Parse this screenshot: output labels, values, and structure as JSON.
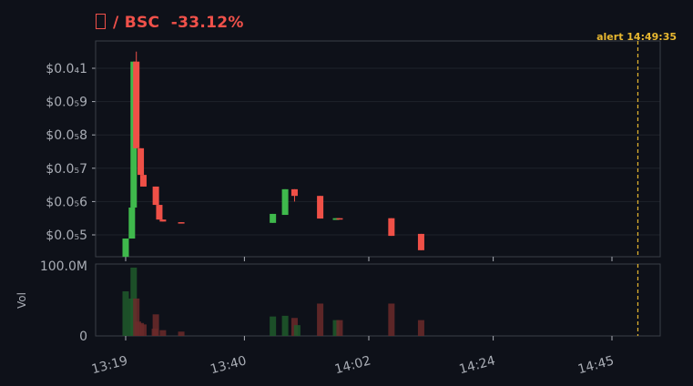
{
  "header": {
    "pair": "/ BSC",
    "change": "-33.12%",
    "token_icon": "missing-glyph-icon"
  },
  "alert": {
    "label": "alert 14:49:35",
    "time": "14:49:35",
    "color": "#e8b830"
  },
  "colors": {
    "up": "#3fb94c",
    "down": "#ef5047",
    "vol_up": "#1e5a2c",
    "vol_down": "#6b2a2a",
    "grid": "#1e222b",
    "axis": "#3a3e47"
  },
  "chart_data": [
    {
      "type": "candlestick",
      "title": "",
      "y_tick_labels": [
        "$0.0₅5",
        "$0.0₅6",
        "$0.0₅7",
        "$0.0₅8",
        "$0.0₅9",
        "$0.0₄1"
      ],
      "y_ticks": [
        5e-06,
        6e-06,
        7e-06,
        8e-06,
        9e-06,
        1e-05
      ],
      "x_tick_labels": [
        "13:19",
        "13:40",
        "14:02",
        "14:24",
        "14:45"
      ],
      "grid": true,
      "candles": [
        {
          "t": "13:19:00",
          "o": 4.34e-06,
          "h": 4.89e-06,
          "l": 4.34e-06,
          "c": 4.89e-06
        },
        {
          "t": "13:20:06",
          "o": 4.89e-06,
          "h": 5.82e-06,
          "l": 4.89e-06,
          "c": 5.82e-06
        },
        {
          "t": "13:20:25",
          "o": 5.82e-06,
          "h": 1.02e-05,
          "l": 5.82e-06,
          "c": 1.02e-05
        },
        {
          "t": "13:20:53",
          "o": 1.02e-05,
          "h": 1.05e-05,
          "l": 7.6e-06,
          "c": 7.6e-06
        },
        {
          "t": "13:21:40",
          "o": 7.6e-06,
          "h": 7.6e-06,
          "l": 6.8e-06,
          "c": 6.8e-06
        },
        {
          "t": "13:22:08",
          "o": 6.8e-06,
          "h": 6.8e-06,
          "l": 6.45e-06,
          "c": 6.45e-06
        },
        {
          "t": "13:24:20",
          "o": 6.45e-06,
          "h": 6.45e-06,
          "l": 5.9e-06,
          "c": 5.9e-06
        },
        {
          "t": "13:24:57",
          "o": 5.9e-06,
          "h": 5.9e-06,
          "l": 5.46e-06,
          "c": 5.46e-06
        },
        {
          "t": "13:25:35",
          "o": 5.46e-06,
          "h": 5.46e-06,
          "l": 5.4e-06,
          "c": 5.4e-06
        },
        {
          "t": "13:28:50",
          "o": 5.38e-06,
          "h": 5.38e-06,
          "l": 5.37e-06,
          "c": 5.37e-06
        },
        {
          "t": "13:45:02",
          "o": 5.36e-06,
          "h": 5.63e-06,
          "l": 5.36e-06,
          "c": 5.63e-06
        },
        {
          "t": "13:47:12",
          "o": 5.6e-06,
          "h": 6.37e-06,
          "l": 5.6e-06,
          "c": 6.37e-06
        },
        {
          "t": "13:48:52",
          "o": 6.37e-06,
          "h": 6.37e-06,
          "l": 6e-06,
          "c": 6.17e-06
        },
        {
          "t": "13:53:24",
          "o": 6.17e-06,
          "h": 6.17e-06,
          "l": 5.49e-06,
          "c": 5.49e-06
        },
        {
          "t": "13:56:12",
          "o": 5.45e-06,
          "h": 5.5e-06,
          "l": 5.45e-06,
          "c": 5.5e-06
        },
        {
          "t": "13:56:50",
          "o": 5.5e-06,
          "h": 5.5e-06,
          "l": 5.48e-06,
          "c": 5.48e-06
        },
        {
          "t": "14:06:00",
          "o": 5.5e-06,
          "h": 5.5e-06,
          "l": 4.97e-06,
          "c": 4.97e-06
        },
        {
          "t": "14:11:15",
          "o": 5.03e-06,
          "h": 5.03e-06,
          "l": 4.54e-06,
          "c": 4.54e-06
        }
      ]
    },
    {
      "type": "bar",
      "ylabel": "Vol",
      "y_tick_labels": [
        "0",
        "100.0M"
      ],
      "ylim": [
        0,
        100000000
      ],
      "bars": [
        {
          "t": "13:19:00",
          "v": 62000000,
          "dir": "up"
        },
        {
          "t": "13:20:06",
          "v": 52000000,
          "dir": "up"
        },
        {
          "t": "13:20:25",
          "v": 95000000,
          "dir": "up"
        },
        {
          "t": "13:20:53",
          "v": 52000000,
          "dir": "down"
        },
        {
          "t": "13:21:10",
          "v": 20000000,
          "dir": "down"
        },
        {
          "t": "13:21:40",
          "v": 18000000,
          "dir": "down"
        },
        {
          "t": "13:22:08",
          "v": 16000000,
          "dir": "down"
        },
        {
          "t": "13:24:10",
          "v": 10000000,
          "dir": "down"
        },
        {
          "t": "13:24:20",
          "v": 30000000,
          "dir": "down"
        },
        {
          "t": "13:25:35",
          "v": 8000000,
          "dir": "down"
        },
        {
          "t": "13:28:50",
          "v": 6000000,
          "dir": "down"
        },
        {
          "t": "13:45:02",
          "v": 27000000,
          "dir": "up"
        },
        {
          "t": "13:47:12",
          "v": 28000000,
          "dir": "up"
        },
        {
          "t": "13:48:52",
          "v": 25000000,
          "dir": "down"
        },
        {
          "t": "13:49:20",
          "v": 15000000,
          "dir": "up"
        },
        {
          "t": "13:53:24",
          "v": 45000000,
          "dir": "down"
        },
        {
          "t": "13:56:12",
          "v": 22000000,
          "dir": "up"
        },
        {
          "t": "13:56:50",
          "v": 22000000,
          "dir": "down"
        },
        {
          "t": "14:06:00",
          "v": 45000000,
          "dir": "down"
        },
        {
          "t": "14:11:15",
          "v": 22000000,
          "dir": "down"
        }
      ]
    }
  ]
}
